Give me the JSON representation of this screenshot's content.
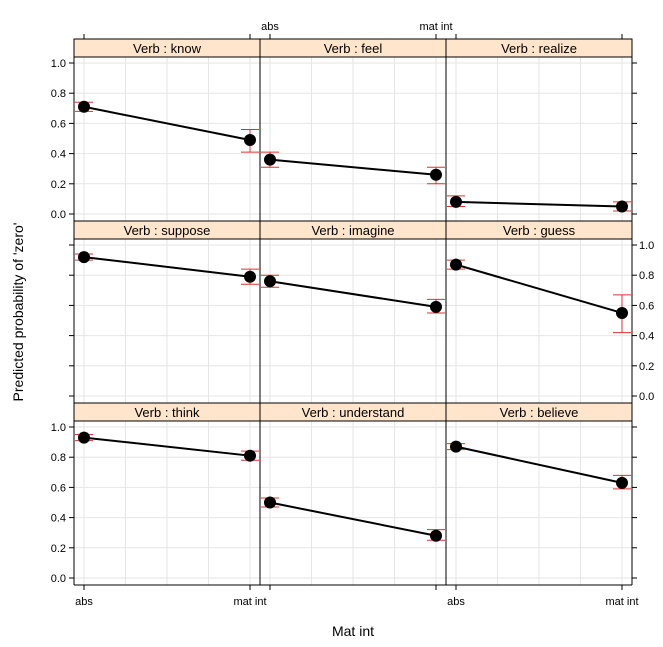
{
  "chart_data": {
    "type": "line",
    "xlabel": "Mat int",
    "ylabel": "Predicted probability of 'zero'",
    "x_categories": [
      "abs",
      "mat int"
    ],
    "ylim": [
      0,
      1
    ],
    "y_ticks": [
      "0.0",
      "0.2",
      "0.4",
      "0.6",
      "0.8",
      "1.0"
    ],
    "grid": true,
    "colors": {
      "strip": "#ffe5cc",
      "line": "#000000",
      "errorbar": "#e03030",
      "grid": "#e6e6e6"
    },
    "panels": [
      {
        "label": "Verb : know",
        "values": [
          0.71,
          0.49
        ],
        "lower": [
          0.68,
          0.41
        ],
        "upper": [
          0.74,
          0.56
        ]
      },
      {
        "label": "Verb : feel",
        "values": [
          0.36,
          0.26
        ],
        "lower": [
          0.31,
          0.2
        ],
        "upper": [
          0.41,
          0.31
        ]
      },
      {
        "label": "Verb : realize",
        "values": [
          0.08,
          0.05
        ],
        "lower": [
          0.05,
          0.02
        ],
        "upper": [
          0.12,
          0.08
        ]
      },
      {
        "label": "Verb : suppose",
        "values": [
          0.92,
          0.79
        ],
        "lower": [
          0.9,
          0.74
        ],
        "upper": [
          0.94,
          0.84
        ]
      },
      {
        "label": "Verb : imagine",
        "values": [
          0.76,
          0.59
        ],
        "lower": [
          0.72,
          0.55
        ],
        "upper": [
          0.8,
          0.64
        ]
      },
      {
        "label": "Verb : guess",
        "values": [
          0.87,
          0.55
        ],
        "lower": [
          0.84,
          0.42
        ],
        "upper": [
          0.9,
          0.67
        ]
      },
      {
        "label": "Verb : think",
        "values": [
          0.93,
          0.81
        ],
        "lower": [
          0.91,
          0.78
        ],
        "upper": [
          0.95,
          0.84
        ]
      },
      {
        "label": "Verb : understand",
        "values": [
          0.5,
          0.28
        ],
        "lower": [
          0.47,
          0.25
        ],
        "upper": [
          0.53,
          0.32
        ]
      },
      {
        "label": "Verb : believe",
        "values": [
          0.87,
          0.63
        ],
        "lower": [
          0.85,
          0.59
        ],
        "upper": [
          0.89,
          0.68
        ]
      }
    ]
  }
}
